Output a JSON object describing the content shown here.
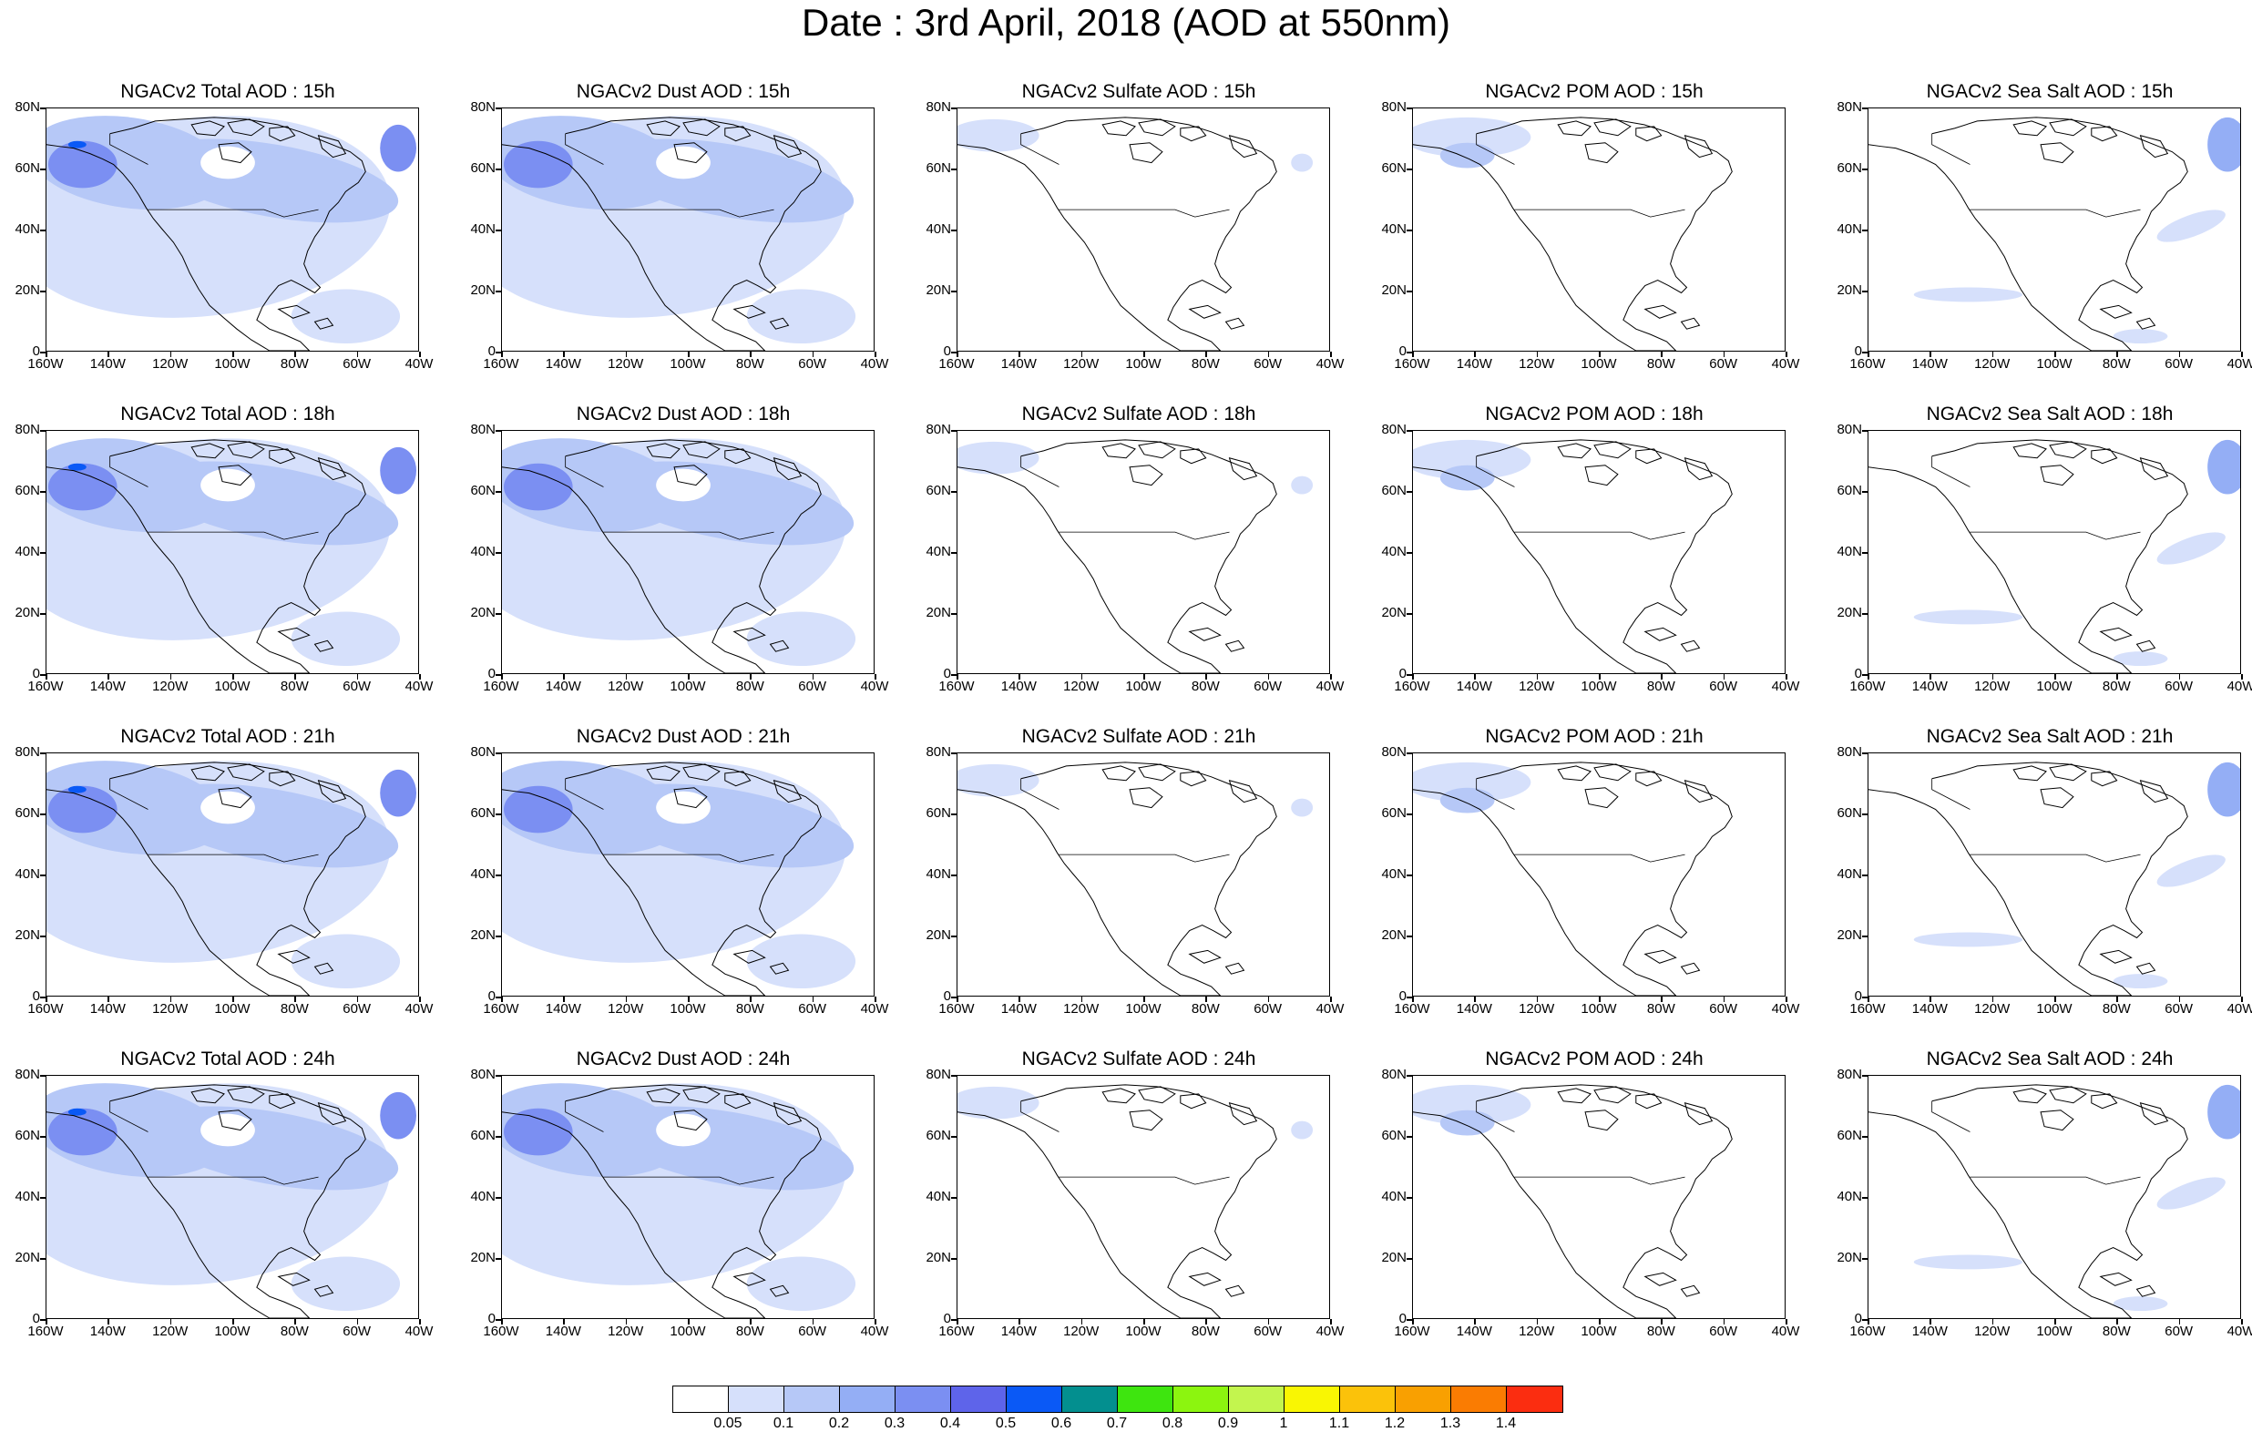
{
  "title": "Date : 3rd April, 2018 (AOD at 550nm)",
  "panels": [
    {
      "title": "NGACv2 Total AOD : 15h",
      "product": "total",
      "intensity": 1.0
    },
    {
      "title": "NGACv2 Dust AOD : 15h",
      "product": "dust",
      "intensity": 0.9
    },
    {
      "title": "NGACv2 Sulfate AOD : 15h",
      "product": "sulfate",
      "intensity": 0.4
    },
    {
      "title": "NGACv2 POM AOD : 15h",
      "product": "pom",
      "intensity": 0.5
    },
    {
      "title": "NGACv2 Sea Salt AOD : 15h",
      "product": "seasalt",
      "intensity": 0.5
    },
    {
      "title": "NGACv2 Total AOD : 18h",
      "product": "total",
      "intensity": 1.0
    },
    {
      "title": "NGACv2 Dust AOD : 18h",
      "product": "dust",
      "intensity": 0.9
    },
    {
      "title": "NGACv2 Sulfate AOD : 18h",
      "product": "sulfate",
      "intensity": 0.4
    },
    {
      "title": "NGACv2 POM AOD : 18h",
      "product": "pom",
      "intensity": 0.5
    },
    {
      "title": "NGACv2 Sea Salt AOD : 18h",
      "product": "seasalt",
      "intensity": 0.6
    },
    {
      "title": "NGACv2 Total AOD : 21h",
      "product": "total",
      "intensity": 1.0
    },
    {
      "title": "NGACv2 Dust AOD : 21h",
      "product": "dust",
      "intensity": 0.9
    },
    {
      "title": "NGACv2 Sulfate AOD : 21h",
      "product": "sulfate",
      "intensity": 0.4
    },
    {
      "title": "NGACv2 POM AOD : 21h",
      "product": "pom",
      "intensity": 0.5
    },
    {
      "title": "NGACv2 Sea Salt AOD : 21h",
      "product": "seasalt",
      "intensity": 0.6
    },
    {
      "title": "NGACv2 Total AOD : 24h",
      "product": "total",
      "intensity": 1.0
    },
    {
      "title": "NGACv2 Dust AOD : 24h",
      "product": "dust",
      "intensity": 0.9
    },
    {
      "title": "NGACv2 Sulfate AOD : 24h",
      "product": "sulfate",
      "intensity": 0.4
    },
    {
      "title": "NGACv2 POM AOD : 24h",
      "product": "pom",
      "intensity": 0.5
    },
    {
      "title": "NGACv2 Sea Salt  AOD : 24h",
      "product": "seasalt",
      "intensity": 0.6
    }
  ],
  "y_ticks": [
    "80N",
    "60N",
    "40N",
    "20N",
    "0"
  ],
  "x_ticks": [
    "160W",
    "140W",
    "120W",
    "100W",
    "80W",
    "60W",
    "40W"
  ],
  "colorbar": {
    "colors": [
      "#ffffff",
      "#d6e0fb",
      "#b6c8f7",
      "#94aef5",
      "#7b8ff2",
      "#5e64ea",
      "#0a59f6",
      "#038f8f",
      "#3ee50f",
      "#8cf50f",
      "#c3f54e",
      "#f9f603",
      "#fbc20a",
      "#f9a001",
      "#fa7c02",
      "#fb2d10"
    ],
    "labels": [
      "0.05",
      "0.1",
      "0.2",
      "0.3",
      "0.4",
      "0.5",
      "0.6",
      "0.7",
      "0.8",
      "0.9",
      "1",
      "1.1",
      "1.2",
      "1.3",
      "1.4"
    ]
  }
}
